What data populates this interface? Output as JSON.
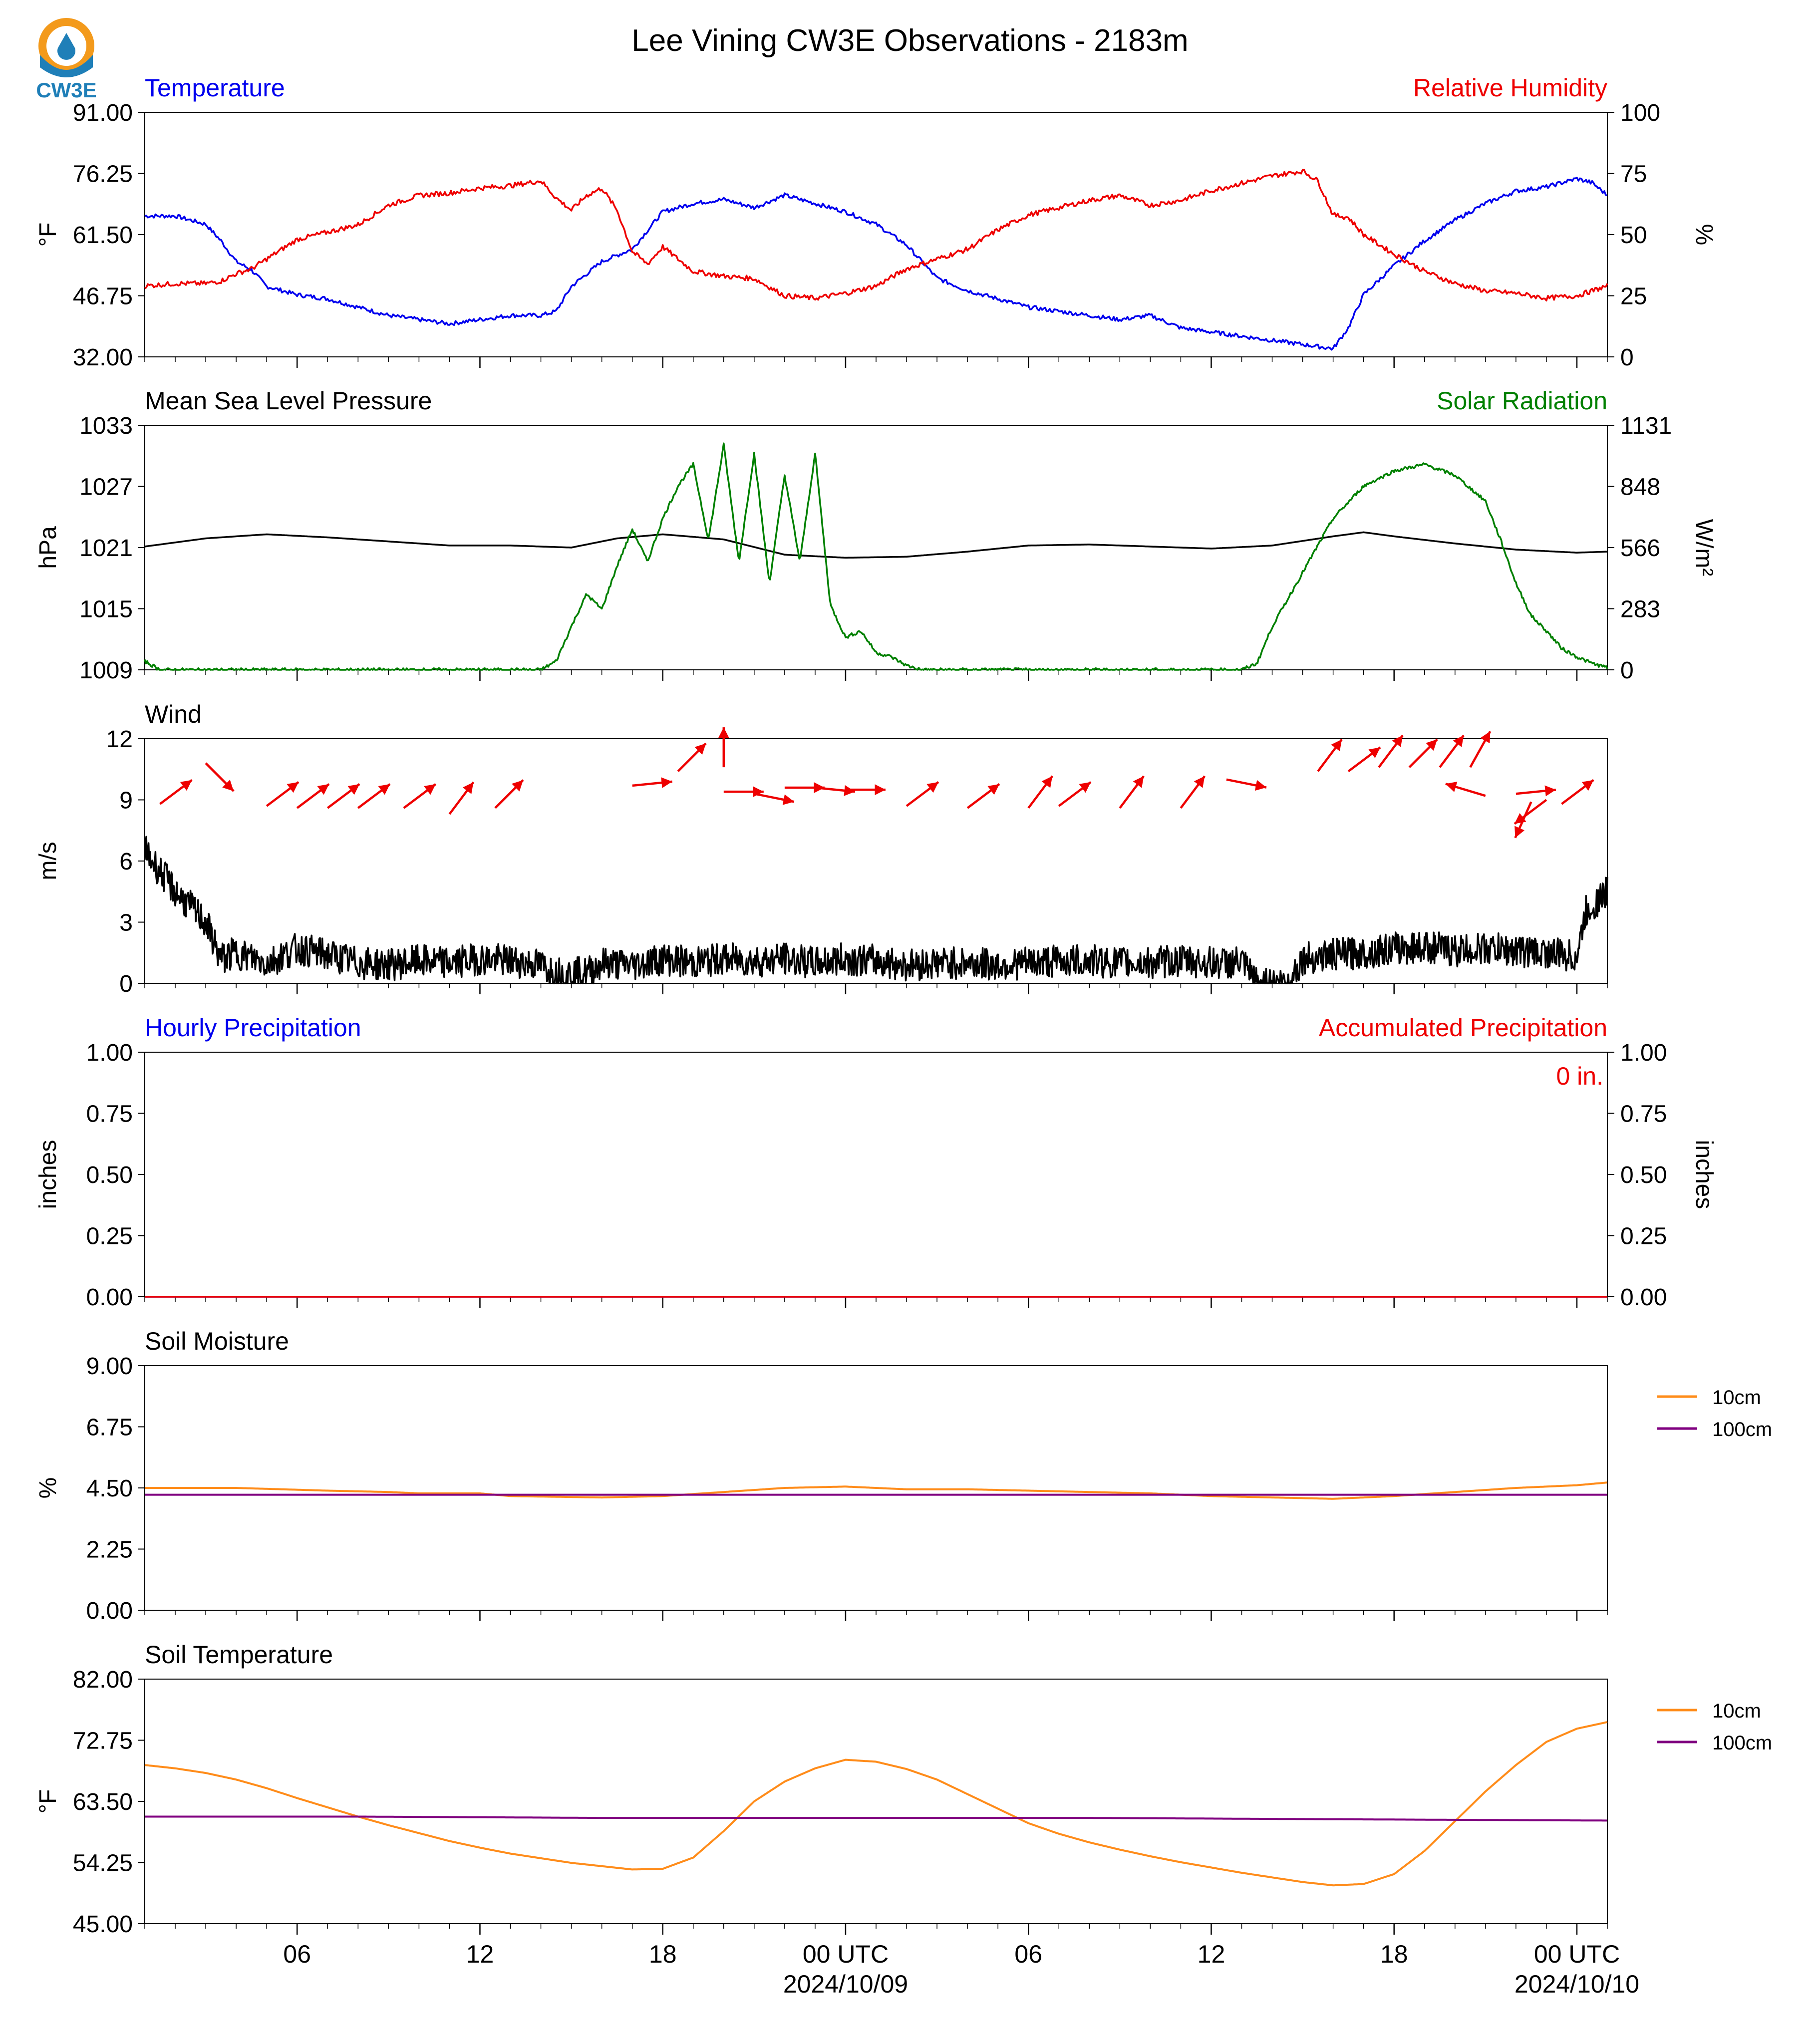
{
  "title": "Lee Vining CW3E Observations - 2183m",
  "logo": {
    "text": "CW3E",
    "colors": {
      "sun": "#f39a1c",
      "water": "#1f7fb8"
    }
  },
  "x_axis": {
    "hours": [
      6,
      12,
      18,
      24,
      30,
      36,
      42,
      48
    ],
    "tick_labels": [
      "06",
      "12",
      "18",
      "00 UTC",
      "06",
      "12",
      "18",
      "00 UTC"
    ],
    "date_labels": [
      {
        "hour": 24,
        "text": "2024/10/09"
      },
      {
        "hour": 48,
        "text": "2024/10/10"
      }
    ],
    "range_hours": [
      1,
      49
    ]
  },
  "panels": [
    {
      "id": "temp-rh",
      "left_title": "Temperature",
      "left_title_color": "#0000ee",
      "right_title": "Relative Humidity",
      "right_title_color": "#ee0000",
      "ylabel_left": "°F",
      "ylabel_right": "%",
      "yticks_left": [
        "32.00",
        "46.75",
        "61.50",
        "76.25",
        "91.00"
      ],
      "yticks_right": [
        "0",
        "25",
        "50",
        "75",
        "100"
      ]
    },
    {
      "id": "pressure-solar",
      "left_title": "Mean Sea Level Pressure",
      "left_title_color": "#000000",
      "right_title": "Solar Radiation",
      "right_title_color": "#008000",
      "ylabel_left": "hPa",
      "ylabel_right": "W/m²",
      "yticks_left": [
        "1009",
        "1015",
        "1021",
        "1027",
        "1033"
      ],
      "yticks_right": [
        "0",
        "283",
        "566",
        "848",
        "1131"
      ]
    },
    {
      "id": "wind",
      "left_title": "Wind",
      "left_title_color": "#000000",
      "ylabel_left": "m/s",
      "yticks_left": [
        "0",
        "3",
        "6",
        "9",
        "12"
      ]
    },
    {
      "id": "precip",
      "left_title": "Hourly Precipitation",
      "left_title_color": "#0000ee",
      "right_title": "Accumulated Precipitation",
      "right_title_color": "#ee0000",
      "ylabel_left": "inches",
      "ylabel_right": "inches",
      "yticks_left": [
        "0.00",
        "0.25",
        "0.50",
        "0.75",
        "1.00"
      ],
      "yticks_right": [
        "0.00",
        "0.25",
        "0.50",
        "0.75",
        "1.00"
      ],
      "annotation": "0 in."
    },
    {
      "id": "soil-moisture",
      "left_title": "Soil Moisture",
      "left_title_color": "#000000",
      "ylabel_left": "%",
      "yticks_left": [
        "0.00",
        "2.25",
        "4.50",
        "6.75",
        "9.00"
      ],
      "legend": [
        "10cm",
        "100cm"
      ]
    },
    {
      "id": "soil-temp",
      "left_title": "Soil Temperature",
      "left_title_color": "#000000",
      "ylabel_left": "°F",
      "yticks_left": [
        "45.00",
        "54.25",
        "63.50",
        "72.75",
        "82.00"
      ],
      "legend": [
        "10cm",
        "100cm"
      ]
    }
  ],
  "chart_data": [
    {
      "type": "line",
      "title": "Temperature / Relative Humidity",
      "x_unit": "hours since 2024/10/08 00 UTC",
      "ylim_left": [
        32,
        91
      ],
      "ylim_right": [
        0,
        100
      ],
      "series": [
        {
          "name": "Temperature",
          "axis": "left",
          "color": "#0000ee",
          "x": [
            1,
            2,
            2.5,
            3,
            3.5,
            4,
            4.5,
            5,
            6,
            7,
            8,
            9,
            10,
            11,
            12,
            13,
            14,
            14.5,
            15,
            16,
            17,
            18,
            19,
            20,
            21,
            22,
            23,
            24,
            25,
            26,
            27,
            28,
            29,
            30,
            31,
            32,
            33,
            34,
            35,
            36,
            37,
            38,
            39,
            40,
            40.5,
            41,
            42,
            43,
            44,
            45,
            46,
            47,
            48,
            48.5,
            49
          ],
          "y": [
            66,
            66,
            65,
            64,
            60,
            55,
            53,
            49,
            47,
            46,
            44,
            42,
            41,
            40,
            41,
            42,
            42,
            43,
            49,
            55,
            58,
            67,
            69,
            70,
            68,
            71,
            69,
            67,
            64,
            59,
            51,
            48,
            46,
            44,
            43,
            42,
            41,
            42,
            39,
            38,
            37,
            36,
            35,
            34,
            39,
            47,
            54,
            60,
            65,
            69,
            72,
            73,
            75,
            74,
            71
          ]
        },
        {
          "name": "Relative Humidity",
          "axis": "right",
          "color": "#ee0000",
          "x": [
            1,
            2,
            3,
            3.5,
            4,
            4.5,
            5,
            6,
            7,
            8,
            9,
            10,
            11,
            12,
            13,
            13.5,
            14,
            14.5,
            15,
            15.5,
            16,
            16.5,
            17,
            17.5,
            18,
            19,
            20,
            21,
            22,
            23,
            24,
            25,
            26,
            27,
            28,
            29,
            30,
            31,
            32,
            33,
            34,
            35,
            36,
            37,
            38,
            38.5,
            39,
            39.5,
            40,
            40.5,
            41,
            42,
            43,
            44,
            45,
            46,
            47,
            48,
            49
          ],
          "y": [
            29,
            30,
            30,
            31,
            34,
            36,
            40,
            48,
            51,
            54,
            62,
            66,
            67,
            69,
            70,
            71,
            72,
            65,
            60,
            66,
            69,
            60,
            43,
            38,
            45,
            35,
            33,
            32,
            25,
            24,
            26,
            29,
            36,
            40,
            44,
            52,
            58,
            61,
            64,
            66,
            62,
            64,
            68,
            71,
            74,
            75,
            76,
            72,
            58,
            57,
            50,
            42,
            35,
            30,
            27,
            26,
            24,
            25,
            29
          ]
        },
        {
          "name": "Temperature",
          "axis": "left",
          "color": "#0000ee",
          "x": [],
          "y": []
        }
      ]
    },
    {
      "type": "line",
      "title": "Mean Sea Level Pressure / Solar Radiation",
      "x_unit": "hours since 2024/10/08 00 UTC",
      "ylim_left": [
        1009,
        1033
      ],
      "ylim_right": [
        0,
        1131
      ],
      "series": [
        {
          "name": "Mean Sea Level Pressure",
          "axis": "left",
          "color": "#000000",
          "x": [
            1,
            3,
            5,
            7,
            9,
            11,
            13,
            15,
            16.5,
            18,
            20,
            22,
            24,
            26,
            28,
            30,
            32,
            34,
            36,
            38,
            40,
            41,
            42,
            44,
            46,
            48,
            49
          ],
          "y": [
            1021.1,
            1021.9,
            1022.3,
            1022.0,
            1021.6,
            1021.2,
            1021.2,
            1021.0,
            1021.9,
            1022.3,
            1021.8,
            1020.3,
            1020.0,
            1020.1,
            1020.6,
            1021.2,
            1021.3,
            1021.1,
            1020.9,
            1021.2,
            1022.1,
            1022.5,
            1022.1,
            1021.4,
            1020.8,
            1020.5,
            1020.6
          ],
          "draw_line": true
        },
        {
          "name": "Solar Radiation",
          "axis": "right",
          "color": "#008000",
          "x": [
            1,
            1.5,
            14,
            14.5,
            15,
            15.5,
            16,
            16.5,
            17,
            17.5,
            18,
            18.5,
            19,
            19.5,
            20,
            20.5,
            21,
            21.5,
            22,
            22.5,
            23,
            23.5,
            24,
            24.5,
            25,
            25.5,
            26,
            26.5,
            37,
            37.5,
            38,
            39,
            40,
            41,
            42,
            43,
            44,
            45,
            45.5,
            46,
            46.5,
            47,
            47.5,
            48,
            48.5,
            49
          ],
          "y": [
            40,
            0,
            0,
            40,
            200,
            350,
            280,
            480,
            650,
            500,
            700,
            850,
            950,
            600,
            1040,
            500,
            1000,
            400,
            900,
            500,
            1000,
            300,
            150,
            180,
            80,
            60,
            20,
            0,
            0,
            30,
            200,
            450,
            700,
            850,
            920,
            950,
            900,
            780,
            600,
            400,
            250,
            180,
            100,
            60,
            30,
            10
          ]
        }
      ]
    },
    {
      "type": "line",
      "title": "Wind",
      "x_unit": "hours since 2024/10/08 00 UTC",
      "ylim": [
        0,
        12
      ],
      "series": [
        {
          "name": "Wind",
          "color": "#000000",
          "noise": 0.8,
          "x": [
            1,
            2,
            3,
            3.5,
            4,
            5,
            6,
            7,
            8,
            9,
            10,
            11,
            12,
            13,
            14,
            14.5,
            15.5,
            16,
            17,
            18,
            19,
            20,
            21,
            22,
            23,
            24,
            25,
            26,
            27,
            28,
            29,
            30,
            31,
            32,
            33,
            34,
            35,
            36,
            37,
            37.5,
            38.5,
            39,
            40,
            41,
            42,
            43,
            44,
            45,
            46,
            47,
            48,
            48.3,
            49
          ],
          "y": [
            6.5,
            4.5,
            3.0,
            1.2,
            1.5,
            1.0,
            1.7,
            1.4,
            1.0,
            0.9,
            1.1,
            1.0,
            1.2,
            1.1,
            0.9,
            0.5,
            0.5,
            1.0,
            0.9,
            1.2,
            1.0,
            1.2,
            1.1,
            1.2,
            1.0,
            1.2,
            1.1,
            0.9,
            1.0,
            1.0,
            0.9,
            1.0,
            1.1,
            1.1,
            1.0,
            1.0,
            1.1,
            1.0,
            1.0,
            0.0,
            0.0,
            1.2,
            1.4,
            1.5,
            1.7,
            1.8,
            1.6,
            1.7,
            1.6,
            1.5,
            1.3,
            3.5,
            4.5
          ]
        }
      ],
      "wind_vectors": {
        "color": "#ee0000",
        "x": [
          1.5,
          3,
          5,
          6,
          7,
          8,
          9.5,
          11,
          12.5,
          17,
          18.5,
          20,
          20,
          21,
          22,
          23,
          24,
          26,
          28,
          30,
          31,
          33,
          35,
          36.5,
          39.5,
          40.5,
          41.5,
          42.5,
          43.5,
          44.5,
          45,
          46,
          46.5,
          47,
          47.5
        ],
        "y": [
          8.8,
          10.8,
          8.7,
          8.6,
          8.6,
          8.6,
          8.6,
          8.3,
          8.6,
          9.7,
          10.4,
          10.6,
          9.4,
          9.3,
          9.6,
          9.6,
          9.5,
          8.7,
          8.6,
          8.6,
          8.7,
          8.6,
          8.6,
          10.0,
          10.4,
          10.4,
          10.6,
          10.6,
          10.6,
          10.6,
          9.2,
          9.3,
          8.9,
          9.0,
          8.8
        ],
        "u": [
          0.8,
          0.7,
          0.8,
          0.8,
          0.8,
          0.8,
          0.8,
          0.6,
          0.7,
          1.0,
          0.7,
          0,
          1.0,
          1.0,
          1.0,
          1.0,
          1.0,
          0.8,
          0.8,
          0.6,
          0.8,
          0.6,
          0.6,
          1.0,
          0.6,
          0.8,
          0.6,
          0.7,
          0.6,
          0.5,
          -1.0,
          1.0,
          -0.4,
          -0.8,
          0.8
        ],
        "v": [
          0.6,
          -0.7,
          0.6,
          0.6,
          0.6,
          0.6,
          0.6,
          0.8,
          0.7,
          0.1,
          0.7,
          1.0,
          0.0,
          -0.2,
          0.0,
          -0.1,
          0.0,
          0.6,
          0.6,
          0.8,
          0.6,
          0.8,
          0.8,
          -0.2,
          0.8,
          0.6,
          0.8,
          0.7,
          0.8,
          0.9,
          0.3,
          0.1,
          -0.9,
          -0.6,
          0.6
        ]
      }
    },
    {
      "type": "line",
      "title": "Hourly / Accumulated Precipitation",
      "ylim": [
        0,
        1
      ],
      "series": [
        {
          "name": "Hourly Precipitation",
          "color": "#0000ee",
          "x": [
            1,
            49
          ],
          "y": [
            0,
            0
          ]
        },
        {
          "name": "Accumulated Precipitation",
          "color": "#ee0000",
          "x": [
            1,
            49
          ],
          "y": [
            0,
            0
          ]
        }
      ]
    },
    {
      "type": "line",
      "title": "Soil Moisture",
      "ylim": [
        0,
        9
      ],
      "series": [
        {
          "name": "10cm",
          "color": "#ff8c1a",
          "x": [
            1,
            4,
            7,
            9,
            10,
            12,
            13,
            16,
            18,
            20,
            22,
            24,
            26,
            28,
            30,
            32,
            34,
            36,
            38,
            40,
            41,
            42,
            44,
            46,
            48,
            49
          ],
          "y": [
            4.5,
            4.5,
            4.4,
            4.35,
            4.3,
            4.3,
            4.2,
            4.15,
            4.2,
            4.35,
            4.5,
            4.55,
            4.45,
            4.45,
            4.4,
            4.35,
            4.3,
            4.2,
            4.15,
            4.1,
            4.15,
            4.2,
            4.35,
            4.5,
            4.6,
            4.7
          ]
        },
        {
          "name": "100cm",
          "color": "#800080",
          "x": [
            1,
            49
          ],
          "y": [
            4.25,
            4.25
          ]
        }
      ]
    },
    {
      "type": "line",
      "title": "Soil Temperature",
      "ylim": [
        45,
        82
      ],
      "series": [
        {
          "name": "10cm",
          "color": "#ff8c1a",
          "x": [
            1,
            2,
            3,
            4,
            5,
            6,
            7,
            8,
            9,
            10,
            11,
            12,
            13,
            14,
            15,
            16,
            17,
            18,
            19,
            20,
            21,
            22,
            23,
            24,
            25,
            26,
            27,
            28,
            29,
            30,
            31,
            32,
            33,
            34,
            35,
            36,
            37,
            38,
            39,
            40,
            41,
            42,
            43,
            44,
            45,
            46,
            47,
            48,
            49
          ],
          "y": [
            69,
            68.5,
            67.8,
            66.8,
            65.5,
            64.0,
            62.6,
            61.2,
            59.9,
            58.7,
            57.5,
            56.5,
            55.6,
            54.9,
            54.2,
            53.7,
            53.2,
            53.3,
            55.0,
            59.0,
            63.5,
            66.5,
            68.5,
            69.8,
            69.5,
            68.4,
            66.8,
            64.6,
            62.4,
            60.2,
            58.6,
            57.3,
            56.2,
            55.2,
            54.3,
            53.5,
            52.7,
            52.0,
            51.3,
            50.8,
            51.0,
            52.5,
            56.0,
            60.5,
            65.0,
            69.0,
            72.5,
            74.5,
            75.5
          ]
        },
        {
          "name": "100cm",
          "color": "#800080",
          "x": [
            1,
            8,
            16,
            24,
            32,
            40,
            49
          ],
          "y": [
            61.2,
            61.2,
            61.0,
            61.0,
            61.0,
            60.8,
            60.6
          ]
        }
      ]
    }
  ]
}
